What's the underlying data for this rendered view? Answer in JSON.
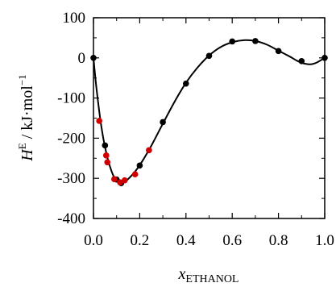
{
  "chart_data": {
    "type": "scatter",
    "xlabel_main": "x",
    "xlabel_sub": "ETHANOL",
    "ylabel_main": "H",
    "ylabel_sup": "E",
    "ylabel_rest": " / kJ·mol",
    "ylabel_exp": "−1",
    "xlim": [
      0.0,
      1.0
    ],
    "ylim": [
      -400,
      100
    ],
    "x_ticks": [
      {
        "value": 0.0,
        "label": "0.0"
      },
      {
        "value": 0.2,
        "label": "0.2"
      },
      {
        "value": 0.4,
        "label": "0.4"
      },
      {
        "value": 0.6,
        "label": "0.6"
      },
      {
        "value": 0.8,
        "label": "0.8"
      },
      {
        "value": 1.0,
        "label": "1.0"
      }
    ],
    "y_ticks": [
      {
        "value": 100,
        "label": "100"
      },
      {
        "value": 0,
        "label": "0"
      },
      {
        "value": -100,
        "label": "-100"
      },
      {
        "value": -200,
        "label": "-200"
      },
      {
        "value": -300,
        "label": "-300"
      },
      {
        "value": -400,
        "label": "-400"
      }
    ],
    "grid": false,
    "series": [
      {
        "color": "#000000",
        "points": [
          {
            "x": 0.0,
            "y": 0
          },
          {
            "x": 0.05,
            "y": -218
          },
          {
            "x": 0.1,
            "y": -303
          },
          {
            "x": 0.12,
            "y": -312
          },
          {
            "x": 0.2,
            "y": -268
          },
          {
            "x": 0.3,
            "y": -160
          },
          {
            "x": 0.4,
            "y": -64
          },
          {
            "x": 0.5,
            "y": 5
          },
          {
            "x": 0.6,
            "y": 41
          },
          {
            "x": 0.7,
            "y": 42
          },
          {
            "x": 0.8,
            "y": 17
          },
          {
            "x": 0.9,
            "y": -8
          },
          {
            "x": 1.0,
            "y": 0
          }
        ]
      },
      {
        "color": "#d00000",
        "points": [
          {
            "x": 0.025,
            "y": -157
          },
          {
            "x": 0.055,
            "y": -243
          },
          {
            "x": 0.06,
            "y": -260
          },
          {
            "x": 0.09,
            "y": -302
          },
          {
            "x": 0.115,
            "y": -310
          },
          {
            "x": 0.135,
            "y": -305
          },
          {
            "x": 0.18,
            "y": -290
          },
          {
            "x": 0.24,
            "y": -230
          }
        ]
      }
    ],
    "fit_curve": {
      "color": "#000000",
      "points": [
        [
          0.0,
          0
        ],
        [
          0.01,
          -60
        ],
        [
          0.02,
          -110
        ],
        [
          0.03,
          -155
        ],
        [
          0.04,
          -192
        ],
        [
          0.05,
          -222
        ],
        [
          0.06,
          -248
        ],
        [
          0.07,
          -268
        ],
        [
          0.08,
          -285
        ],
        [
          0.09,
          -298
        ],
        [
          0.1,
          -306
        ],
        [
          0.11,
          -311
        ],
        [
          0.12,
          -312
        ],
        [
          0.13,
          -311
        ],
        [
          0.14,
          -307
        ],
        [
          0.16,
          -296
        ],
        [
          0.18,
          -283
        ],
        [
          0.2,
          -267
        ],
        [
          0.22,
          -249
        ],
        [
          0.25,
          -219
        ],
        [
          0.3,
          -164
        ],
        [
          0.35,
          -110
        ],
        [
          0.4,
          -62
        ],
        [
          0.45,
          -24
        ],
        [
          0.5,
          6
        ],
        [
          0.55,
          27
        ],
        [
          0.6,
          39
        ],
        [
          0.65,
          44
        ],
        [
          0.7,
          42
        ],
        [
          0.75,
          33
        ],
        [
          0.8,
          18
        ],
        [
          0.85,
          3
        ],
        [
          0.88,
          -7
        ],
        [
          0.91,
          -14
        ],
        [
          0.94,
          -16
        ],
        [
          0.96,
          -13
        ],
        [
          0.98,
          -7
        ],
        [
          1.0,
          0
        ]
      ]
    }
  }
}
